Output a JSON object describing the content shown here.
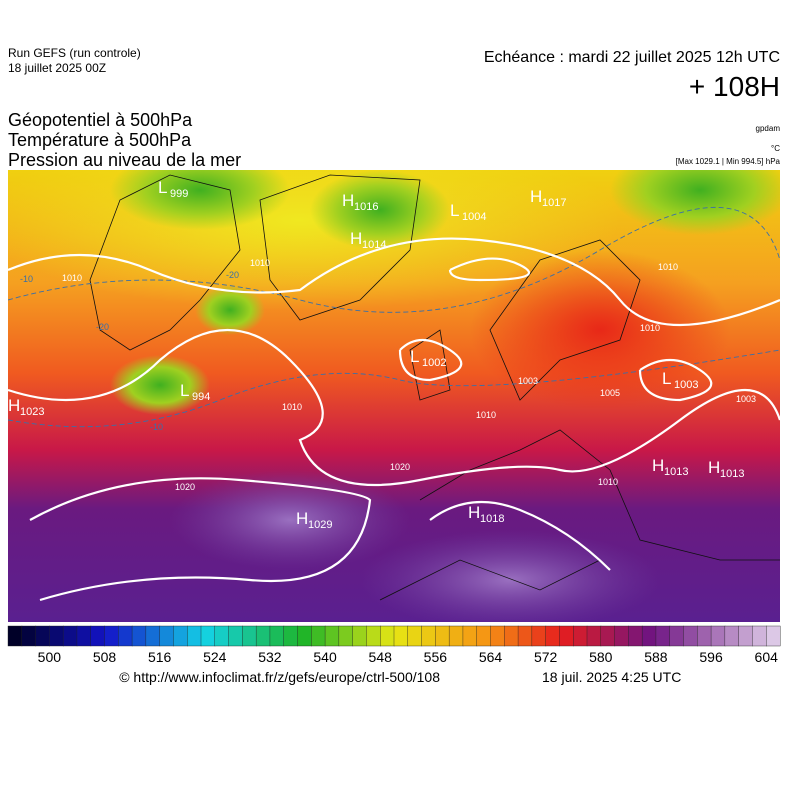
{
  "header": {
    "run": "Run GEFS (run controle)",
    "run_date": "18 juillet 2025 00Z",
    "valid": "Echéance : mardi 22 juillet 2025 12h UTC",
    "lead": "+ 108H",
    "fields": [
      "Géopotentiel à 500hPa",
      "Température à 500hPa",
      "Pression au niveau de la mer"
    ],
    "units": [
      "gpdam",
      "°C",
      "[Max 1029.1 | Min 994.5] hPa"
    ]
  },
  "map": {
    "centers": [
      {
        "type": "L",
        "value": "999"
      },
      {
        "type": "H",
        "value": "1016"
      },
      {
        "type": "H",
        "value": "1014"
      },
      {
        "type": "L",
        "value": "1004"
      },
      {
        "type": "H",
        "value": "1017"
      },
      {
        "type": "H",
        "value": "1023"
      },
      {
        "type": "L",
        "value": "994"
      },
      {
        "type": "L",
        "value": "1002"
      },
      {
        "type": "L",
        "value": "1003"
      },
      {
        "type": "H",
        "value": "1013"
      },
      {
        "type": "H",
        "value": "1013"
      },
      {
        "type": "H",
        "value": "1029"
      },
      {
        "type": "H",
        "value": "1018"
      }
    ],
    "isobar_labels": [
      "1010",
      "1010",
      "1010",
      "1010",
      "1020",
      "1020",
      "1010",
      "1010",
      "1010",
      "1003",
      "1005",
      "1003"
    ],
    "temperature_labels": [
      "-20",
      "-10",
      "-10",
      "-20"
    ]
  },
  "colorbar": {
    "lim": [
      494,
      606
    ],
    "ticks": [
      500,
      508,
      516,
      524,
      532,
      540,
      548,
      556,
      564,
      572,
      580,
      588,
      596,
      604
    ]
  },
  "footer": {
    "source": "© http://www.infoclimat.fr/z/gefs/europe/ctrl-500/108",
    "generated": "18 juil. 2025  4:25 UTC"
  }
}
